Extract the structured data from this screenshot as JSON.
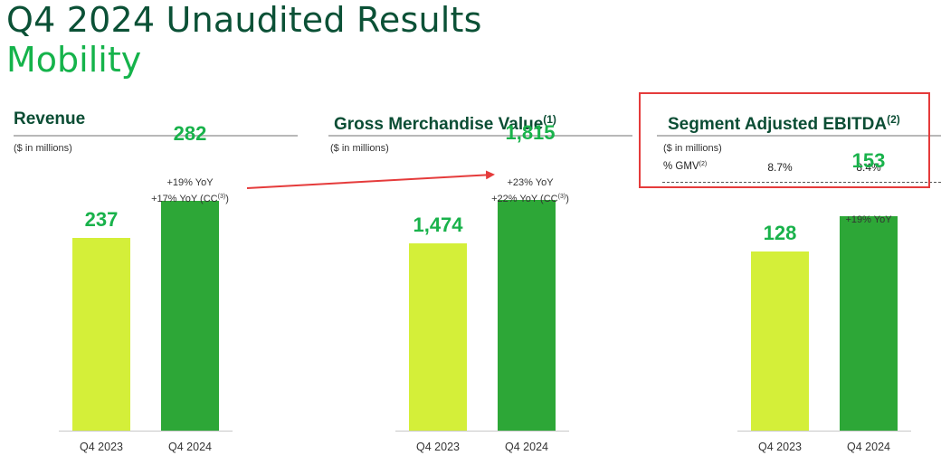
{
  "header": {
    "title": "Q4 2024 Unaudited Results",
    "subtitle": "Mobility"
  },
  "colors": {
    "title": "#0b5136",
    "subtitle": "#15b34b",
    "prev_bar": "#d4ef39",
    "curr_bar": "#2da737",
    "value_label": "#19b24b",
    "highlight_box": "#e53b3b",
    "arrow": "#e53b3b"
  },
  "chart_data": [
    {
      "type": "bar",
      "title": "Revenue",
      "unit": "($ in millions)",
      "categories": [
        "Q4 2023",
        "Q4 2024"
      ],
      "values": [
        237,
        282
      ],
      "value_labels": [
        "237",
        "282"
      ],
      "annotations": [
        "+19% YoY",
        "+17% YoY (CC",
        "(3)",
        ")"
      ],
      "ylim": [
        0,
        320
      ]
    },
    {
      "type": "bar",
      "title": "Gross Merchandise Value",
      "title_note": "(1)",
      "unit": "($ in millions)",
      "categories": [
        "Q4 2023",
        "Q4 2024"
      ],
      "values": [
        1474,
        1815
      ],
      "value_labels": [
        "1,474",
        "1,815"
      ],
      "annotations": [
        "+23% YoY",
        "+22% YoY (CC",
        "(3)",
        ")"
      ],
      "ylim": [
        0,
        2050
      ]
    },
    {
      "type": "bar",
      "title": "Segment Adjusted EBITDA",
      "title_note": "(2)",
      "unit": "($ in millions)",
      "categories": [
        "Q4 2023",
        "Q4 2024"
      ],
      "values": [
        128,
        153
      ],
      "value_labels": [
        "128",
        "153"
      ],
      "annotations": [
        "+19% YoY"
      ],
      "gmv_row": {
        "label": "% GMV",
        "note": "(2)",
        "values": [
          "8.7%",
          "8.4%"
        ]
      },
      "ylim": [
        0,
        186
      ]
    }
  ]
}
